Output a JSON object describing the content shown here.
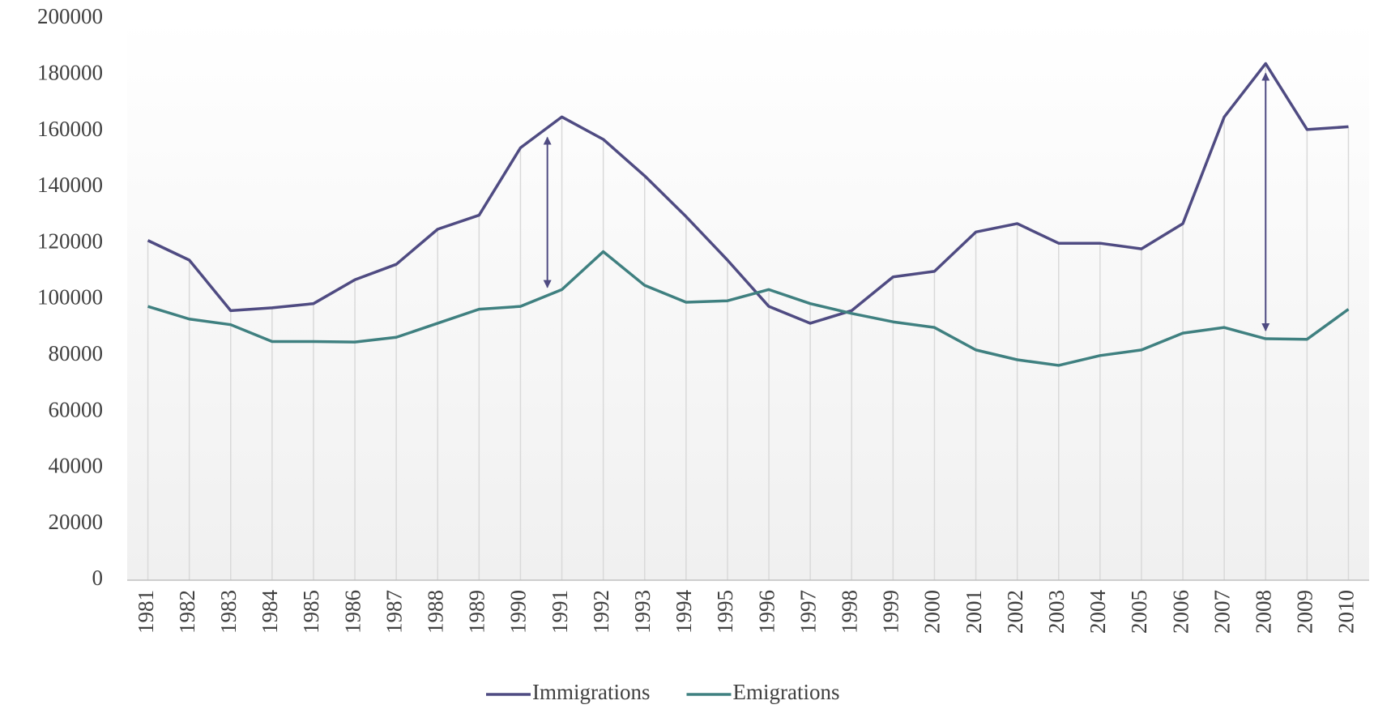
{
  "chart_data": {
    "type": "line",
    "categories": [
      "1981",
      "1982",
      "1983",
      "1984",
      "1985",
      "1986",
      "1987",
      "1988",
      "1989",
      "1990",
      "1991",
      "1992",
      "1993",
      "1994",
      "1995",
      "1996",
      "1997",
      "1998",
      "1999",
      "2000",
      "2001",
      "2002",
      "2003",
      "2004",
      "2005",
      "2006",
      "2007",
      "2008",
      "2009",
      "2010"
    ],
    "series": [
      {
        "name": "Immigrations",
        "color": "#4f4b82",
        "values": [
          121000,
          114000,
          96000,
          97000,
          98500,
          107000,
          112500,
          125000,
          130000,
          154000,
          165000,
          157000,
          144000,
          129500,
          114000,
          97500,
          91500,
          96000,
          108000,
          110000,
          124000,
          127000,
          120000,
          120000,
          118000,
          127000,
          165000,
          184000,
          160500,
          161500
        ]
      },
      {
        "name": "Emigrations",
        "color": "#3f8080",
        "values": [
          97500,
          93000,
          91000,
          85000,
          85000,
          84800,
          86500,
          91500,
          96500,
          97500,
          103500,
          117000,
          105000,
          99000,
          99500,
          103500,
          98500,
          95000,
          92000,
          90000,
          82000,
          78500,
          76500,
          80000,
          82000,
          88000,
          90000,
          86000,
          85800,
          96500
        ]
      }
    ],
    "ylim": [
      0,
      200000
    ],
    "yticks": [
      0,
      20000,
      40000,
      60000,
      80000,
      100000,
      120000,
      140000,
      160000,
      180000,
      200000
    ]
  }
}
